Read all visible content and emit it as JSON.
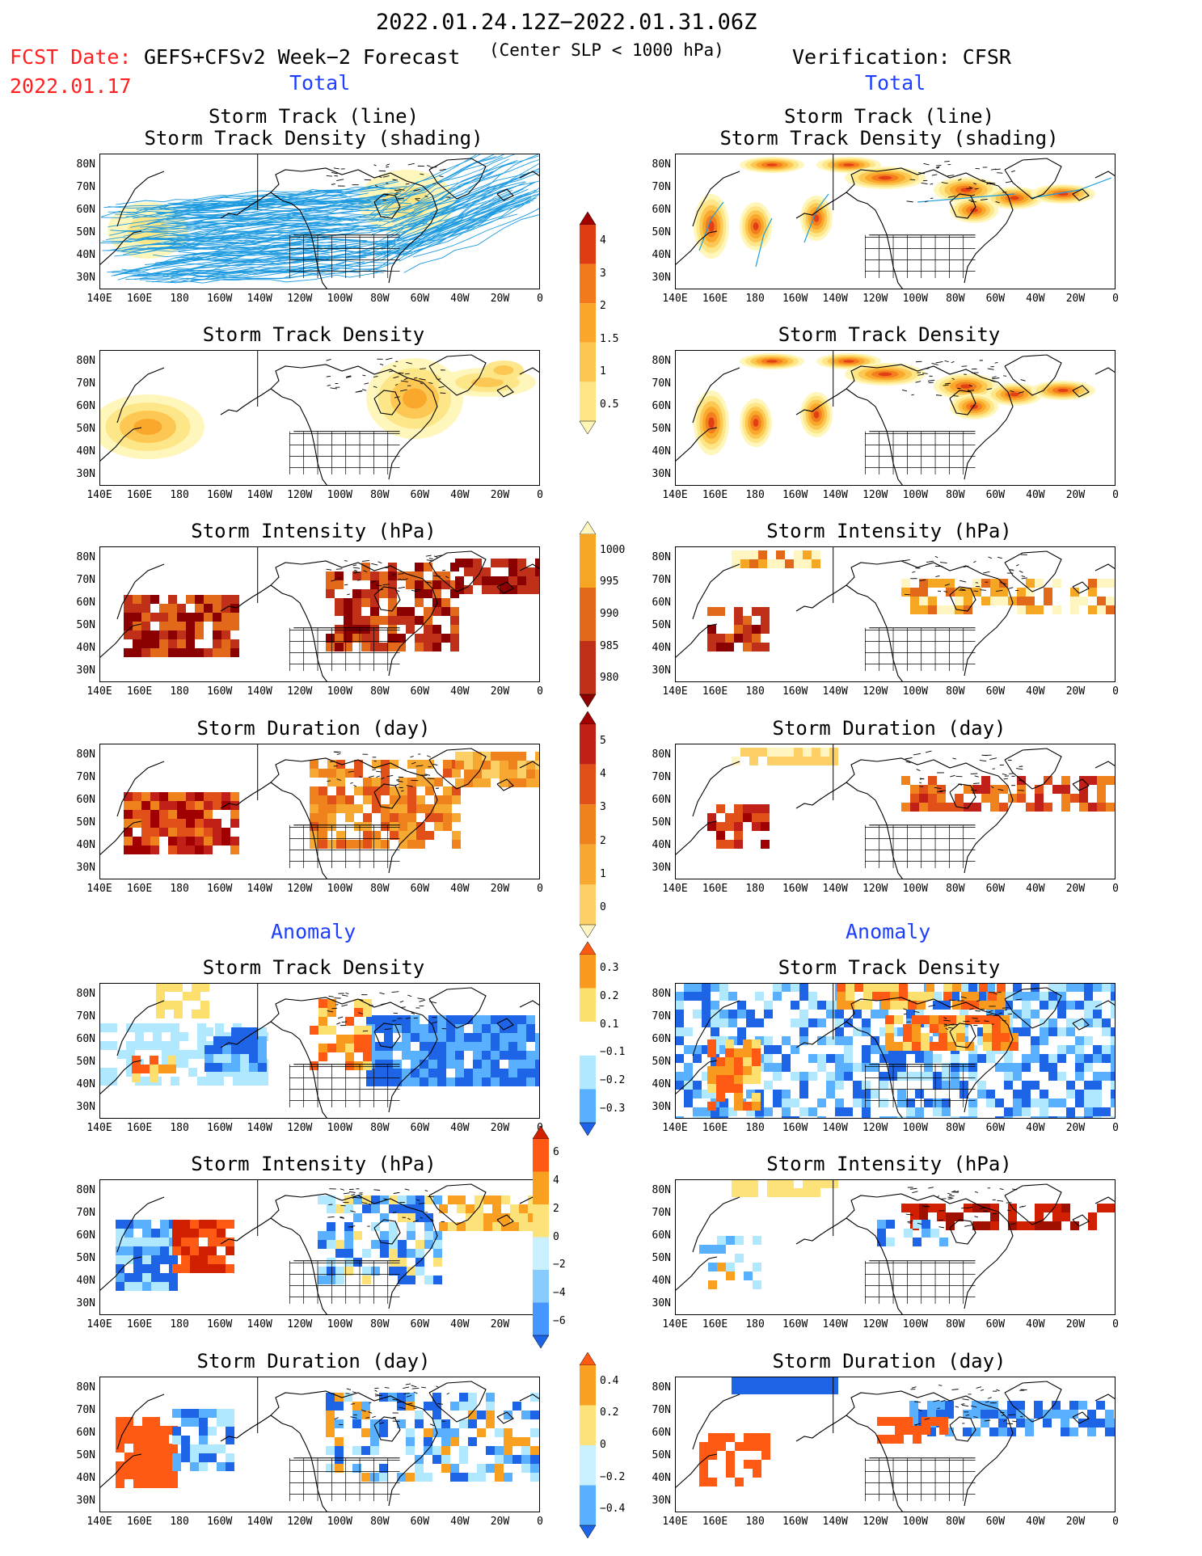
{
  "header": {
    "date_range": "2022.01.24.12Z−2022.01.31.06Z",
    "fcst_label": "FCST Date:",
    "model_label": "GEFS+CFSv2 Week−2 Forecast",
    "criterion": "(Center SLP < 1000 hPa)",
    "verification": "Verification: CFSR",
    "fcst_date": "2022.01.17",
    "left_total": "Total",
    "right_total": "Total",
    "left_anomaly": "Anomaly",
    "right_anomaly": "Anomaly"
  },
  "panel_titles": {
    "track_line": "Storm Track (line)",
    "track_density_shading": "Storm Track Density (shading)",
    "density": "Storm Track Density",
    "intensity": "Storm Intensity (hPa)",
    "duration": "Storm Duration (day)"
  },
  "axes": {
    "lat_labels": [
      "80N",
      "70N",
      "60N",
      "50N",
      "40N",
      "30N"
    ],
    "lon_labels": [
      "140E",
      "160E",
      "180",
      "160W",
      "140W",
      "120W",
      "100W",
      "80W",
      "60W",
      "40W",
      "20W",
      "0"
    ]
  },
  "colorbars": {
    "density": {
      "labels": [
        "4",
        "3",
        "2",
        "1.5",
        "1",
        "0.5"
      ],
      "colors": [
        "#a00000",
        "#e03c14",
        "#f37a1c",
        "#f9a62a",
        "#fcc650",
        "#fde585",
        "#fff6b8"
      ]
    },
    "intensity": {
      "labels": [
        "1000",
        "995",
        "990",
        "985",
        "980"
      ],
      "colors": [
        "#fff5c0",
        "#f5a623",
        "#e2681a",
        "#c03018",
        "#8b0000"
      ]
    },
    "duration": {
      "labels": [
        "5",
        "4",
        "3",
        "2",
        "1",
        "0"
      ],
      "colors": [
        "#a00000",
        "#c02018",
        "#e05018",
        "#f0821e",
        "#f7a830",
        "#fcd066",
        "#fff5c0"
      ]
    },
    "anom_density": {
      "labels": [
        "0.3",
        "0.2",
        "0.1",
        "−0.1",
        "−0.2",
        "−0.3"
      ],
      "colors": [
        "#ff5a14",
        "#f99a1e",
        "#fddf6e",
        "#ffffff",
        "#b0e8ff",
        "#58b0ff",
        "#1e64e6"
      ]
    },
    "anom_intensity": {
      "labels": [
        "6",
        "4",
        "2",
        "0",
        "−2",
        "−4",
        "−6"
      ],
      "colors": [
        "#d02000",
        "#ff5a14",
        "#f9a020",
        "#fde27a",
        "#c8f0ff",
        "#88ccff",
        "#4696ff",
        "#1e64e6"
      ]
    },
    "anom_duration": {
      "labels": [
        "0.4",
        "0.2",
        "0",
        "−0.2",
        "−0.4"
      ],
      "colors": [
        "#ff5a14",
        "#f9a020",
        "#fde27a",
        "#c8f0ff",
        "#58b0ff",
        "#1e64e6"
      ]
    }
  }
}
